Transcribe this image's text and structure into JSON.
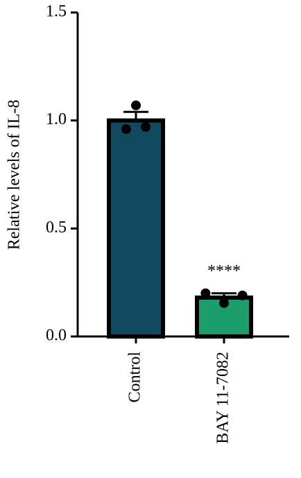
{
  "chart_data": {
    "type": "bar",
    "ylabel": "Relative levels of IL-8",
    "categories": [
      "Control",
      "BAY 11-7082"
    ],
    "values": [
      1.0,
      0.18
    ],
    "errors": [
      0.04,
      0.02
    ],
    "points": [
      [
        1.07,
        0.96,
        0.97
      ],
      [
        0.155,
        0.2,
        0.19
      ]
    ],
    "colors": [
      "#114a5e",
      "#1b9e6b"
    ],
    "annotations": [
      null,
      "****"
    ],
    "ylim": [
      0,
      1.5
    ],
    "yticks": [
      {
        "value": 0,
        "label": "0.0"
      },
      {
        "value": 0.5,
        "label": "0.5"
      },
      {
        "value": 1,
        "label": "1.0"
      },
      {
        "value": 1.5,
        "label": "1.5"
      }
    ]
  }
}
